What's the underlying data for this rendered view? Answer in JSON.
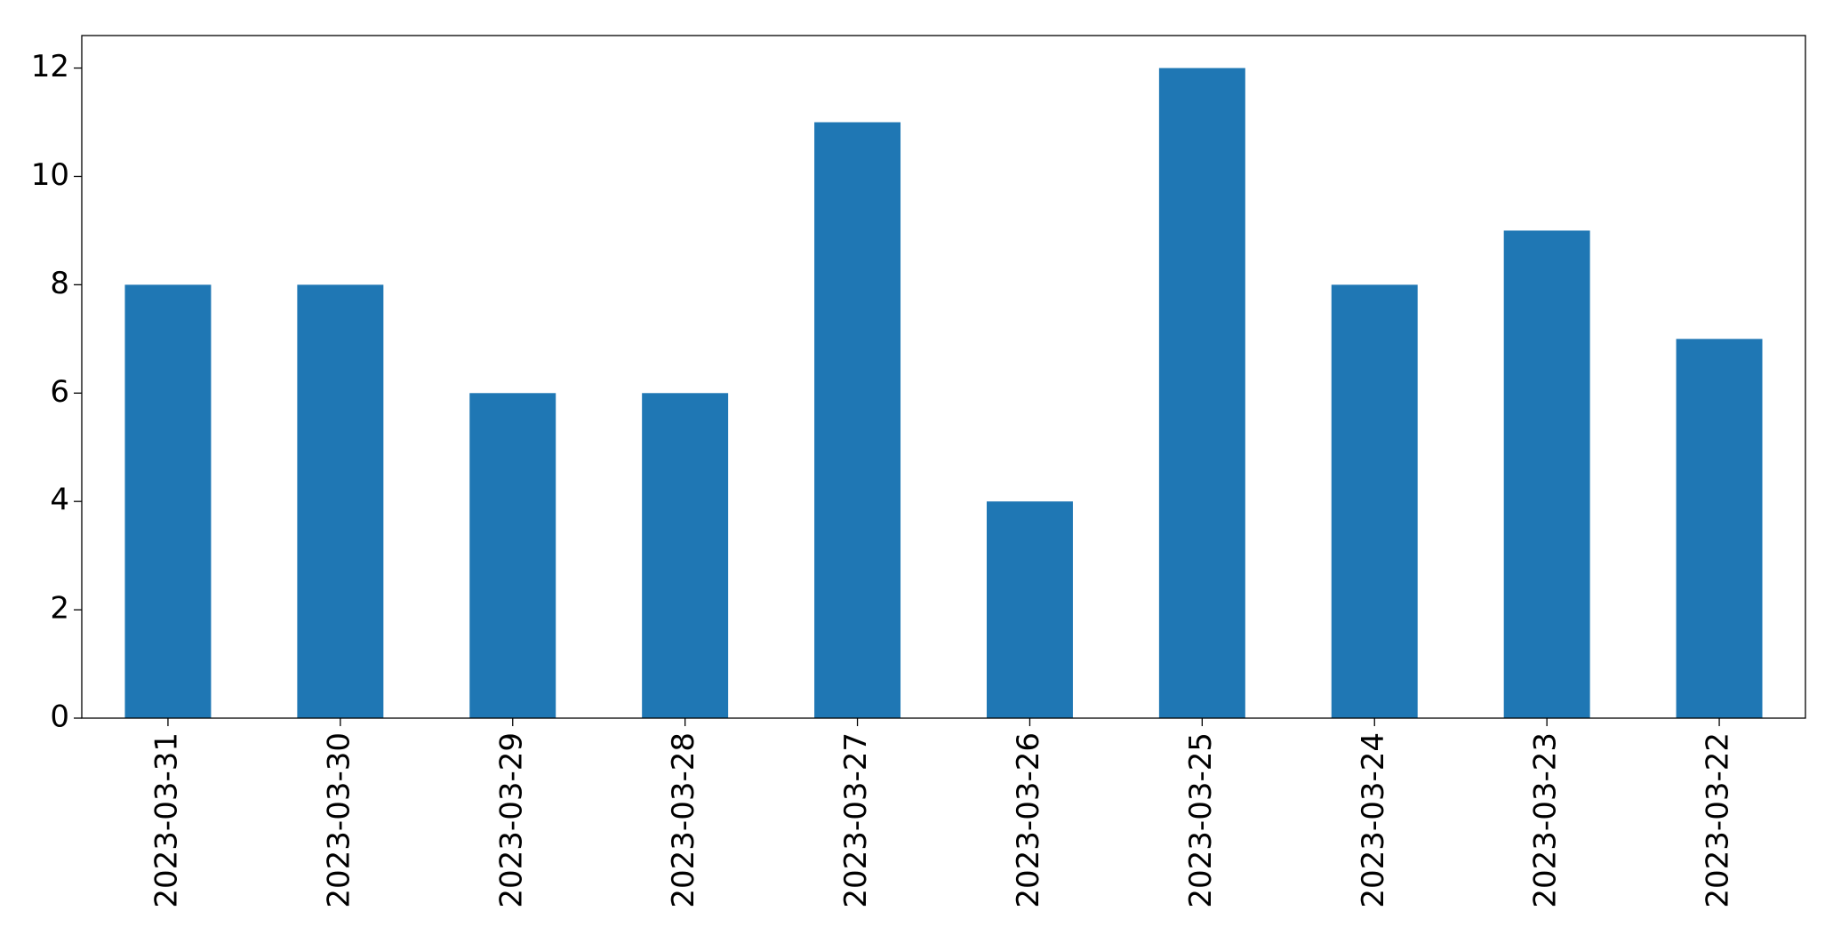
{
  "chart_data": {
    "type": "bar",
    "categories": [
      "2023-03-31",
      "2023-03-30",
      "2023-03-29",
      "2023-03-28",
      "2023-03-27",
      "2023-03-26",
      "2023-03-25",
      "2023-03-24",
      "2023-03-23",
      "2023-03-22"
    ],
    "values": [
      8,
      8,
      6,
      6,
      11,
      4,
      12,
      8,
      9,
      7
    ],
    "color": "#1f77b4",
    "ylim": [
      0,
      12.6
    ],
    "yticks": [
      0,
      2,
      4,
      6,
      8,
      10,
      12
    ],
    "grid": false
  }
}
